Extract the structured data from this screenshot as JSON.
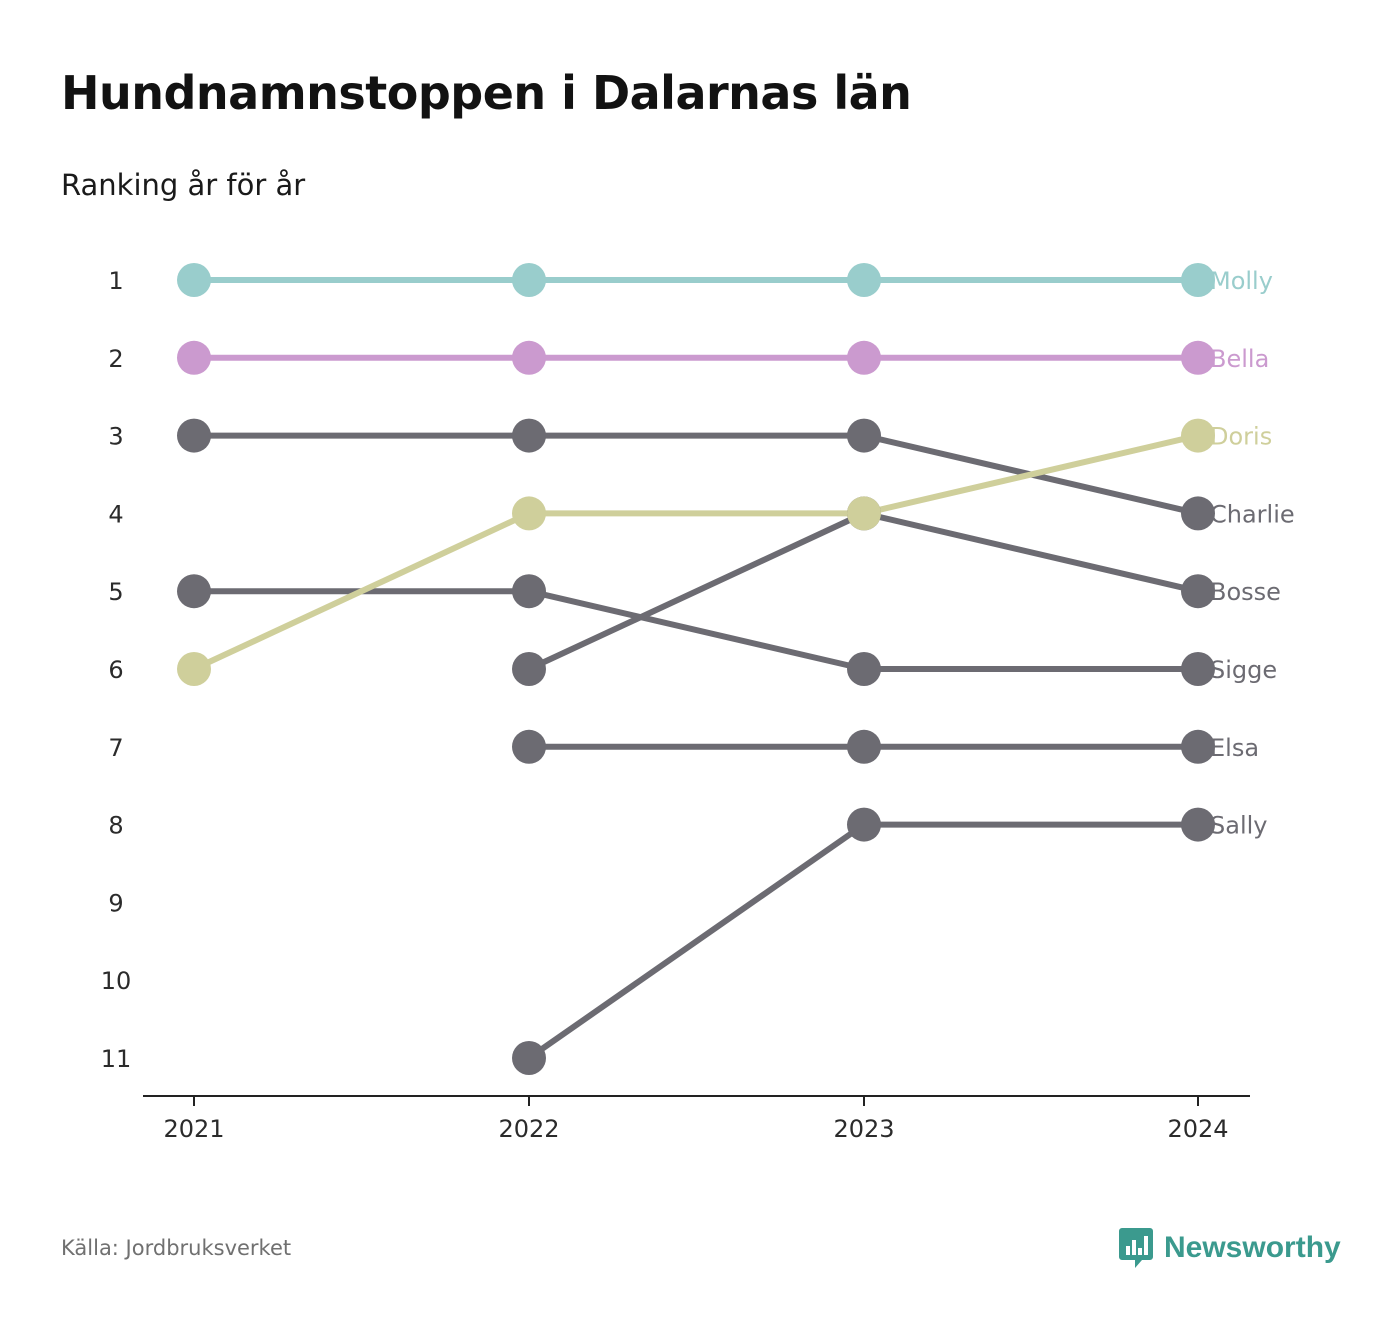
{
  "title": "Hundnamnstoppen i Dalarnas län",
  "subtitle": "Ranking år för år",
  "source": "Källa: Jordbruksverket",
  "brand": "Newsworthy",
  "colors": {
    "highlight_molly": "#99cdcc",
    "highlight_bella": "#cb9acf",
    "highlight_doris": "#cfcf9b",
    "other": "#6c6b72",
    "brand": "#3b9a8e"
  },
  "chart_data": {
    "type": "line",
    "x": [
      "2021",
      "2022",
      "2023",
      "2024"
    ],
    "y_ticks": [
      "1",
      "2",
      "3",
      "4",
      "5",
      "6",
      "7",
      "8",
      "9",
      "10",
      "11"
    ],
    "ylim": [
      1,
      11
    ],
    "y_inverted": true,
    "series": [
      {
        "name": "Molly",
        "color": "#99cdcc",
        "values": [
          1,
          1,
          1,
          1
        ]
      },
      {
        "name": "Bella",
        "color": "#cb9acf",
        "values": [
          2,
          2,
          2,
          2
        ]
      },
      {
        "name": "Charlie",
        "color": "#6c6b72",
        "values": [
          3,
          3,
          3,
          4
        ]
      },
      {
        "name": "Bosse",
        "color": "#6c6b72",
        "values": [
          null,
          6,
          4,
          5
        ]
      },
      {
        "name": "Sigge",
        "color": "#6c6b72",
        "values": [
          5,
          5,
          6,
          6
        ]
      },
      {
        "name": "Elsa",
        "color": "#6c6b72",
        "values": [
          null,
          7,
          7,
          7
        ]
      },
      {
        "name": "Sally",
        "color": "#6c6b72",
        "values": [
          null,
          11,
          8,
          8
        ]
      },
      {
        "name": "Doris",
        "color": "#cfcf9b",
        "values": [
          6,
          4,
          4,
          3
        ]
      }
    ]
  }
}
